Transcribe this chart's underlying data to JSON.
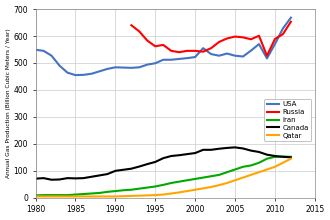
{
  "title": "",
  "ylabel": "Annual Gas Production (Billion Cubic Meters / Year)",
  "xlabel": "",
  "xlim": [
    1980,
    2015
  ],
  "ylim": [
    0,
    700
  ],
  "yticks": [
    0,
    100,
    200,
    300,
    400,
    500,
    600,
    700
  ],
  "xticks": [
    1980,
    1985,
    1990,
    1995,
    2000,
    2005,
    2010,
    2015
  ],
  "background": "#ffffff",
  "series": {
    "USA": {
      "color": "#4472C4",
      "years": [
        1980,
        1981,
        1982,
        1983,
        1984,
        1985,
        1986,
        1987,
        1988,
        1989,
        1990,
        1991,
        1992,
        1993,
        1994,
        1995,
        1996,
        1997,
        1998,
        1999,
        2000,
        2001,
        2002,
        2003,
        2004,
        2005,
        2006,
        2007,
        2008,
        2009,
        2010,
        2011,
        2012
      ],
      "values": [
        549,
        545,
        527,
        490,
        464,
        455,
        456,
        460,
        469,
        478,
        484,
        483,
        482,
        484,
        494,
        499,
        512,
        512,
        515,
        518,
        522,
        555,
        533,
        527,
        535,
        527,
        524,
        546,
        570,
        517,
        570,
        628,
        668
      ]
    },
    "Russia": {
      "color": "#FF0000",
      "years": [
        1992,
        1993,
        1994,
        1995,
        1996,
        1997,
        1998,
        1999,
        2000,
        2001,
        2002,
        2003,
        2004,
        2005,
        2006,
        2007,
        2008,
        2009,
        2010,
        2011,
        2012
      ],
      "values": [
        640,
        617,
        583,
        562,
        567,
        545,
        540,
        545,
        545,
        542,
        555,
        578,
        591,
        598,
        595,
        588,
        601,
        527,
        589,
        607,
        653
      ]
    },
    "Iran": {
      "color": "#00AA00",
      "years": [
        1980,
        1981,
        1982,
        1983,
        1984,
        1985,
        1986,
        1987,
        1988,
        1989,
        1990,
        1991,
        1992,
        1993,
        1994,
        1995,
        1996,
        1997,
        1998,
        1999,
        2000,
        2001,
        2002,
        2003,
        2004,
        2005,
        2006,
        2007,
        2008,
        2009,
        2010,
        2011,
        2012
      ],
      "values": [
        9,
        10,
        10,
        10,
        10,
        12,
        14,
        16,
        18,
        22,
        25,
        28,
        30,
        34,
        38,
        42,
        48,
        55,
        60,
        65,
        70,
        75,
        80,
        85,
        95,
        105,
        115,
        120,
        130,
        145,
        152,
        153,
        152
      ]
    },
    "Canada": {
      "color": "#000000",
      "years": [
        1980,
        1981,
        1982,
        1983,
        1984,
        1985,
        1986,
        1987,
        1988,
        1989,
        1990,
        1991,
        1992,
        1993,
        1994,
        1995,
        1996,
        1997,
        1998,
        1999,
        2000,
        2001,
        2002,
        2003,
        2004,
        2005,
        2006,
        2007,
        2008,
        2009,
        2010,
        2011,
        2012
      ],
      "values": [
        71,
        73,
        67,
        68,
        73,
        72,
        73,
        78,
        83,
        88,
        100,
        104,
        108,
        116,
        125,
        133,
        147,
        155,
        158,
        162,
        166,
        178,
        178,
        182,
        185,
        187,
        183,
        175,
        170,
        160,
        155,
        152,
        150
      ]
    },
    "Qatar": {
      "color": "#FFA500",
      "years": [
        1980,
        1981,
        1982,
        1983,
        1984,
        1985,
        1986,
        1987,
        1988,
        1989,
        1990,
        1991,
        1992,
        1993,
        1994,
        1995,
        1996,
        1997,
        1998,
        1999,
        2000,
        2001,
        2002,
        2003,
        2004,
        2005,
        2006,
        2007,
        2008,
        2009,
        2010,
        2011,
        2012
      ],
      "values": [
        5,
        5,
        5,
        5,
        5,
        5,
        5,
        5,
        5,
        5,
        5,
        6,
        7,
        8,
        9,
        10,
        12,
        16,
        20,
        25,
        30,
        35,
        40,
        47,
        55,
        65,
        75,
        85,
        95,
        105,
        115,
        130,
        145
      ]
    }
  },
  "legend_order": [
    "USA",
    "Russia",
    "Iran",
    "Canada",
    "Qatar"
  ],
  "grid_color": "#cccccc",
  "linewidth": 1.5
}
